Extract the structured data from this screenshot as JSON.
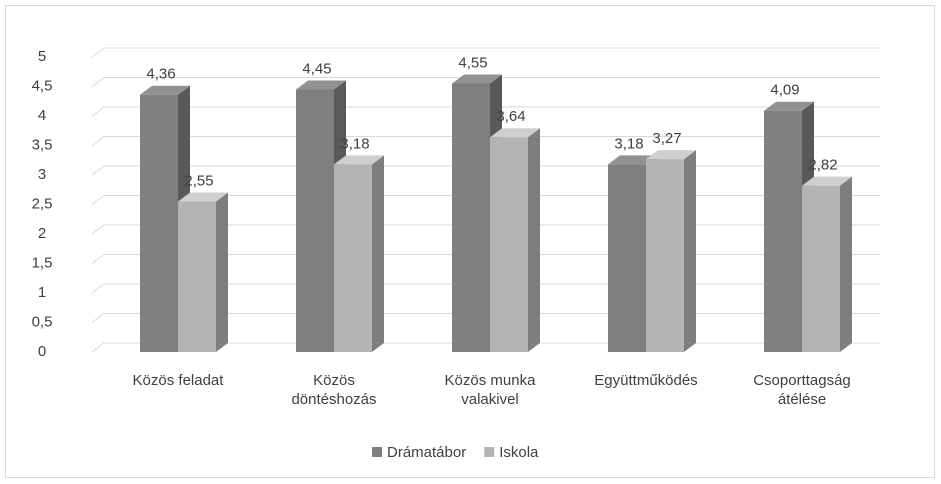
{
  "chart_data": {
    "type": "bar3d",
    "categories": [
      "Közös feladat",
      "Közös döntéshozás",
      "Közös munka valakivel",
      "Együttműködés",
      "Csoporttagság átélése"
    ],
    "series": [
      {
        "name": "Drámatábor",
        "color": "#7f7f7f",
        "values": [
          4.36,
          4.45,
          4.55,
          3.18,
          4.09
        ],
        "value_labels": [
          "4,36",
          "4,45",
          "4,55",
          "3,18",
          "4,09"
        ]
      },
      {
        "name": "Iskola",
        "color": "#b4b4b4",
        "values": [
          2.55,
          3.18,
          3.64,
          3.27,
          2.82
        ],
        "value_labels": [
          "2,55",
          "3,18",
          "3,64",
          "3,27",
          "2,82"
        ]
      }
    ],
    "ylim": [
      0,
      5
    ],
    "yticks": [
      0,
      {
        "value": 0.5,
        "label": "0,5"
      },
      1,
      {
        "value": 1.5,
        "label": "1,5"
      },
      2,
      {
        "value": 2.5,
        "label": "2,5"
      },
      3,
      {
        "value": 3.5,
        "label": "3,5"
      },
      4,
      {
        "value": 4.5,
        "label": "4,5"
      },
      5
    ],
    "grid": true,
    "legend": "bottom"
  }
}
